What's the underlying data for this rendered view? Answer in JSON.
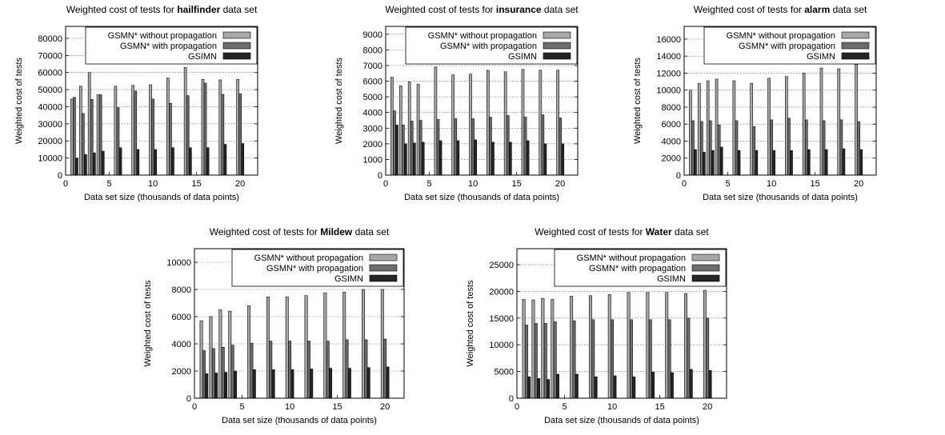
{
  "colors": {
    "without": "#a8a8a8",
    "with": "#6c6c6c",
    "gsimn": "#262626",
    "frame": "#000000",
    "grid": "#555555"
  },
  "chart_data": [
    {
      "type": "bar",
      "title_prefix": "Weighted cost of tests for ",
      "title_bold": "hailfinder",
      "title_suffix": " data set",
      "xlabel": "Data set size (thousands of data points)",
      "ylabel": "Weighted cost of tests",
      "xlim": [
        0,
        22
      ],
      "ylim": [
        0,
        87000
      ],
      "xticks": [
        0,
        5,
        10,
        15,
        20
      ],
      "yticks": [
        0,
        10000,
        20000,
        30000,
        40000,
        50000,
        60000,
        70000,
        80000
      ],
      "grid": true,
      "legend_position": "top-right",
      "x": [
        1,
        2,
        3,
        4,
        6,
        8,
        10,
        12,
        14,
        16,
        18,
        20
      ],
      "series": [
        {
          "name": "GSMN* without propagation",
          "values": [
            44500,
            52000,
            60000,
            47000,
            52000,
            52500,
            52800,
            56800,
            63000,
            56000,
            55700,
            56000
          ]
        },
        {
          "name": "GSMN* with propagation",
          "values": [
            45500,
            36000,
            44300,
            47000,
            39500,
            49200,
            44500,
            42000,
            46500,
            53800,
            47200,
            47500
          ]
        },
        {
          "name": "GSIMN",
          "values": [
            10000,
            12000,
            13000,
            14000,
            16000,
            15000,
            15000,
            16000,
            16000,
            16000,
            18000,
            18500
          ]
        }
      ]
    },
    {
      "type": "bar",
      "title_prefix": "Weighted cost of tests for ",
      "title_bold": "insurance",
      "title_suffix": " data set",
      "xlabel": "Data set size (thousands of data points)",
      "ylabel": "Weighted cost of tests",
      "xlim": [
        0,
        22
      ],
      "ylim": [
        0,
        9500
      ],
      "xticks": [
        0,
        5,
        10,
        15,
        20
      ],
      "yticks": [
        0,
        1000,
        2000,
        3000,
        4000,
        5000,
        6000,
        7000,
        8000,
        9000
      ],
      "grid": true,
      "legend_position": "top-right",
      "x": [
        1,
        2,
        3,
        4,
        6,
        8,
        10,
        12,
        14,
        16,
        18,
        20
      ],
      "series": [
        {
          "name": "GSMN* without propagation",
          "values": [
            6250,
            5700,
            5950,
            5800,
            6900,
            6400,
            6450,
            6700,
            6600,
            6750,
            6700,
            6700
          ]
        },
        {
          "name": "GSMN* with propagation",
          "values": [
            4100,
            3200,
            3450,
            3500,
            3550,
            3600,
            3600,
            3700,
            3800,
            3700,
            3850,
            3650
          ]
        },
        {
          "name": "GSIMN",
          "values": [
            3200,
            2000,
            2050,
            2100,
            2200,
            2200,
            2250,
            2100,
            2100,
            2200,
            2000,
            2000
          ]
        }
      ]
    },
    {
      "type": "bar",
      "title_prefix": "Weighted cost of tests for ",
      "title_bold": "alarm",
      "title_suffix": " data set",
      "xlabel": "Data set size (thousands of data points)",
      "ylabel": "Weighted cost of tests",
      "xlim": [
        0,
        22
      ],
      "ylim": [
        0,
        17500
      ],
      "xticks": [
        0,
        5,
        10,
        15,
        20
      ],
      "yticks": [
        0,
        2000,
        4000,
        6000,
        8000,
        10000,
        12000,
        14000,
        16000
      ],
      "grid": true,
      "legend_position": "top-right",
      "x": [
        1,
        2,
        3,
        4,
        6,
        8,
        10,
        12,
        14,
        16,
        18,
        20
      ],
      "series": [
        {
          "name": "GSMN* without propagation",
          "values": [
            10000,
            10800,
            11100,
            11300,
            11100,
            10800,
            11400,
            11600,
            12000,
            12600,
            12500,
            13000
          ]
        },
        {
          "name": "GSMN* with propagation",
          "values": [
            6400,
            6300,
            6400,
            5900,
            6400,
            5700,
            6500,
            6700,
            6500,
            6400,
            6500,
            6300
          ]
        },
        {
          "name": "GSIMN",
          "values": [
            3000,
            2700,
            2900,
            3300,
            2900,
            2900,
            2900,
            2900,
            3000,
            3000,
            3100,
            3000
          ]
        }
      ]
    },
    {
      "type": "bar",
      "title_prefix": "Weighted cost of tests for ",
      "title_bold": "Mildew",
      "title_suffix": " data set",
      "xlabel": "Data set size (thousands of data points)",
      "ylabel": "Weighted cost of tests",
      "xlim": [
        0,
        22
      ],
      "ylim": [
        0,
        11000
      ],
      "xticks": [
        0,
        5,
        10,
        15,
        20
      ],
      "yticks": [
        0,
        2000,
        4000,
        6000,
        8000,
        10000
      ],
      "grid": true,
      "legend_position": "top-right",
      "x": [
        1,
        2,
        3,
        4,
        6,
        8,
        10,
        12,
        14,
        16,
        18,
        20
      ],
      "series": [
        {
          "name": "GSMN* without propagation",
          "values": [
            5700,
            6000,
            6500,
            6400,
            6800,
            7450,
            7450,
            7550,
            7750,
            7800,
            8000,
            8000
          ]
        },
        {
          "name": "GSMN* with propagation",
          "values": [
            3500,
            3650,
            3750,
            3900,
            4050,
            4200,
            4200,
            4200,
            4200,
            4300,
            4300,
            4350
          ]
        },
        {
          "name": "GSIMN",
          "values": [
            1800,
            1850,
            1900,
            2000,
            2100,
            2100,
            2100,
            2150,
            2200,
            2200,
            2250,
            2300
          ]
        }
      ]
    },
    {
      "type": "bar",
      "title_prefix": "Weighted cost of tests for ",
      "title_bold": "Water",
      "title_suffix": " data set",
      "xlabel": "Data set size (thousands of data points)",
      "ylabel": "Weighted cost of tests",
      "xlim": [
        0,
        22
      ],
      "ylim": [
        0,
        28000
      ],
      "xticks": [
        0,
        5,
        10,
        15,
        20
      ],
      "yticks": [
        0,
        5000,
        10000,
        15000,
        20000,
        25000
      ],
      "grid": true,
      "legend_position": "top-right",
      "x": [
        1,
        2,
        3,
        4,
        6,
        8,
        10,
        12,
        14,
        16,
        18,
        20
      ],
      "series": [
        {
          "name": "GSMN* without propagation",
          "values": [
            18500,
            18400,
            18700,
            18500,
            19100,
            19200,
            19400,
            19800,
            19800,
            19800,
            19600,
            20200
          ]
        },
        {
          "name": "GSMN* with propagation",
          "values": [
            13700,
            14000,
            14000,
            14300,
            14500,
            14700,
            14700,
            14700,
            14700,
            14700,
            15000,
            15000
          ]
        },
        {
          "name": "GSIMN",
          "values": [
            4000,
            3700,
            3500,
            4500,
            4500,
            4000,
            4200,
            4000,
            4900,
            4800,
            5400,
            5200
          ]
        }
      ]
    }
  ]
}
